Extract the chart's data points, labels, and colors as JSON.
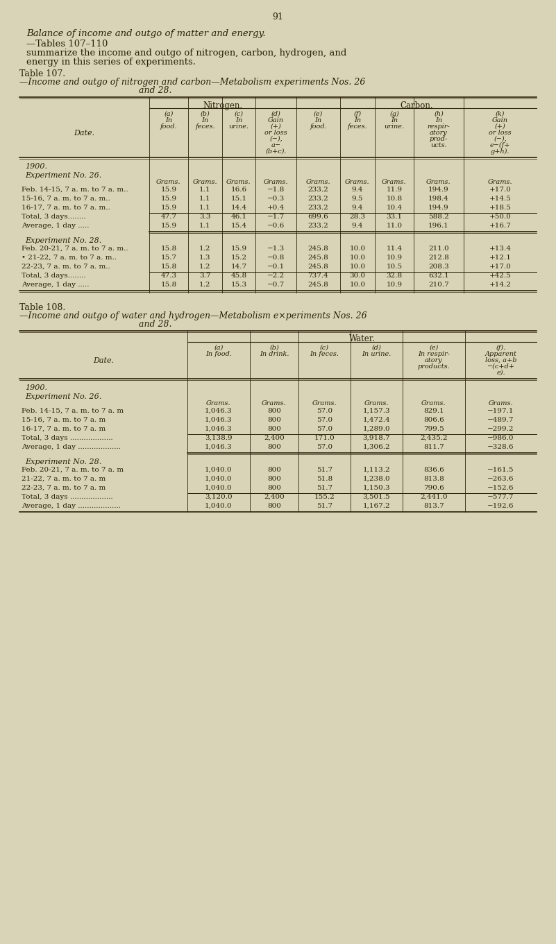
{
  "page_num": "91",
  "bg_color": "#d9d4b8",
  "text_color": "#2a2008",
  "intro_italic": "Balance of income and outgo of matter and energy.",
  "intro_normal": "—Tables 107–110 summarize the income and outgo of nitrogen, carbon, hydrogen, and energy in this series of experiments.",
  "table107_title_roman": "Table 107.",
  "table107_title_italic": "—Income and outgo of nitrogen and carbon—Metabolism experiments Nos. 26 and 28.",
  "table108_title_roman": "Table 108.",
  "table108_title_italic": "—Income and outgo of water and hydrogen—Metabolism e×periments Nos. 26 and 28.",
  "table107": {
    "col_groups": [
      "Nitrogen.",
      "Carbon."
    ],
    "col_headers": [
      "(a)\nIn\nfood.",
      "(b)\nIn\nfeces.",
      "(c)\nIn\nurine.",
      "(d)\nGain\n(+)\nor loss\n(−),\na−\n(b+c).",
      "(e)\nIn\nfood.",
      "(f)\nIn\nfeces.",
      "(g)\nIn\nurine.",
      "(h)\nIn\nrespir-\natory\nprod-\nucts.",
      "(k)\nGain\n(+)\nor loss\n(−),\ne−(f+\ng+h)."
    ],
    "row_label": "Date.",
    "year_row": "1900.",
    "exp26_label": "Experiment No. 26.",
    "exp26_units": [
      "Grams.",
      "Grams.",
      "Grams.",
      "Grams.",
      "Grams.",
      "Grams.",
      "Grams.",
      "Grams.",
      "Grams."
    ],
    "exp26_rows": [
      [
        "Feb. 14-15, 7 a. m. to 7 a. m..",
        "15.9",
        "1.1",
        "16.6",
        "−1.8",
        "233.2",
        "9.4",
        "11.9",
        "194.9",
        "+17.0"
      ],
      [
        "15-16, 7 a. m. to 7 a. m..",
        "15.9",
        "1.1",
        "15.1",
        "−0.3",
        "233.2",
        "9.5",
        "10.8",
        "198.4",
        "+14.5"
      ],
      [
        "16-17, 7 a. m. to 7 a. m..",
        "15.9",
        "1.1",
        "14.4",
        "+0.4",
        "233.2",
        "9.4",
        "10.4",
        "194.9",
        "+18.5"
      ]
    ],
    "exp26_total": [
      "Total, 3 days........",
      "47.7",
      "3.3",
      "46.1",
      "−1.7",
      "699.6",
      "28.3",
      "33.1",
      "588.2",
      "+50.0"
    ],
    "exp26_avg": [
      "Average, 1 day .....",
      "15.9",
      "1.1",
      "15.4",
      "−0.6",
      "233.2",
      "9.4",
      "11.0",
      "196.1",
      "+16.7"
    ],
    "exp28_label": "Experiment No. 28.",
    "exp28_rows": [
      [
        "Feb. 20-21, 7 a. m. to 7 a. m..",
        "15.8",
        "1.2",
        "15.9",
        "−1.3",
        "245.8",
        "10.0",
        "11.4",
        "211.0",
        "+13.4"
      ],
      [
        "• 21-22, 7 a. m. to 7 a. m..",
        "15.7",
        "1.3",
        "15.2",
        "−0.8",
        "245.8",
        "10.0",
        "10.9",
        "212.8",
        "+12.1"
      ],
      [
        "22-23, 7 a. m. to 7 a. m..",
        "15.8",
        "1.2",
        "14.7",
        "−0.1",
        "245.8",
        "10.0",
        "10.5",
        "208.3",
        "+17.0"
      ]
    ],
    "exp28_total": [
      "Total, 3 days........",
      "47.3",
      "3.7",
      "45.8",
      "−2.2",
      "737.4",
      "30.0",
      "32.8",
      "632.1",
      "+42.5"
    ],
    "exp28_avg": [
      "Average, 1 day .....",
      "15.8",
      "1.2",
      "15.3",
      "−0.7",
      "245.8",
      "10.0",
      "10.9",
      "210.7",
      "+14.2"
    ]
  },
  "table108": {
    "col_group": "Water.",
    "col_headers": [
      "(a)\nIn food.",
      "(b)\nIn drink.",
      "(c)\nIn feces.",
      "(d)\nIn urine.",
      "(e)\nIn respir-\natory\nproducts.",
      "(f).\nApparent\nloss, a+b\n−(c+d+\ne)."
    ],
    "row_label": "Date.",
    "year_row": "1900.",
    "exp26_label": "Experiment No. 26.",
    "exp26_units": [
      "Grams.",
      "Grams.",
      "Grams.",
      "Grams.",
      "Grams.",
      "Grams."
    ],
    "exp26_rows": [
      [
        "Feb. 14-15, 7 a. m. to 7 a. m",
        "1,046.3",
        "800",
        "57.0",
        "1,157.3",
        "829.1",
        "−197.1"
      ],
      [
        "15-16, 7 a. m. to 7 a. m",
        "1,046.3",
        "800",
        "57.0",
        "1,472.4",
        "806.6",
        "−489.7"
      ],
      [
        "16-17, 7 a. m. to 7 a. m",
        "1,046.3",
        "800",
        "57.0",
        "1,289.0",
        "799.5",
        "−299.2"
      ]
    ],
    "exp26_total": [
      "Total, 3 days ...................",
      "3,138.9",
      "2,400",
      "171.0",
      "3,918.7",
      "2,435.2",
      "−986.0"
    ],
    "exp26_avg": [
      "Average, 1 day ...................",
      "1,046.3",
      "800",
      "57.0",
      "1,306.2",
      "811.7",
      "−328.6"
    ],
    "exp28_label": "Experiment No. 28.",
    "exp28_rows": [
      [
        "Feb. 20-21, 7 a. m. to 7 a. m",
        "1,040.0",
        "800",
        "51.7",
        "1,113.2",
        "836.6",
        "−161.5"
      ],
      [
        "21-22, 7 a. m. to 7 a. m",
        "1,040.0",
        "800",
        "51.8",
        "1,238.0",
        "813.8",
        "−263.6"
      ],
      [
        "22-23, 7 a. m. to 7 a. m",
        "1,040.0",
        "800",
        "51.7",
        "1,150.3",
        "790.6",
        "−152.6"
      ]
    ],
    "exp28_total": [
      "Total, 3 days ...................",
      "3,120.0",
      "2,400",
      "155.2",
      "3,501.5",
      "2,441.0",
      "−577.7"
    ],
    "exp28_avg": [
      "Average, 1 day ...................",
      "1,040.0",
      "800",
      "51.7",
      "1,167.2",
      "813.7",
      "−192.6"
    ]
  }
}
